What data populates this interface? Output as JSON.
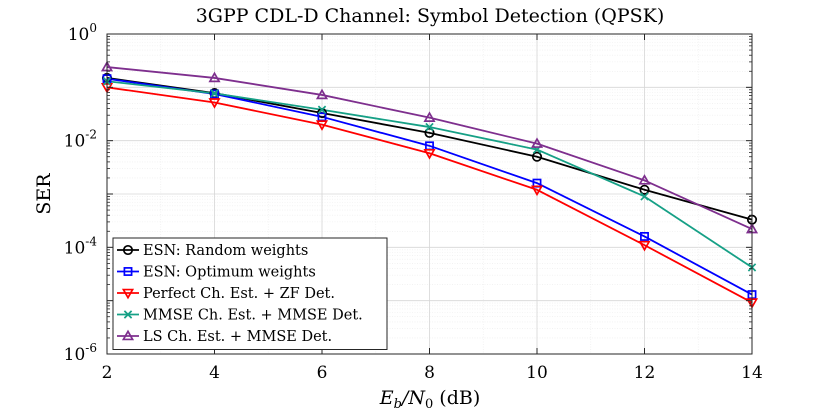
{
  "chart_data": {
    "type": "line",
    "title": "3GPP CDL-D Channel: Symbol Detection (QPSK)",
    "xlabel_main": "E",
    "xlabel_sub_b": "b",
    "xlabel_slash": "/N",
    "xlabel_sub_0": "0",
    "xlabel_unit": " (dB)",
    "ylabel": "SER",
    "x": [
      2,
      4,
      6,
      8,
      10,
      12,
      14
    ],
    "xlim": [
      2,
      14
    ],
    "ylim": [
      1e-06,
      1
    ],
    "yscale": "log",
    "grid": true,
    "legend_position": "bottom-left",
    "x_ticks": [
      "2",
      "4",
      "6",
      "8",
      "10",
      "12",
      "14"
    ],
    "y_ticks": [
      {
        "base": "10",
        "exp": "0",
        "value": 1
      },
      {
        "base": "10",
        "exp": "-2",
        "value": 0.01
      },
      {
        "base": "10",
        "exp": "-4",
        "value": 0.0001
      },
      {
        "base": "10",
        "exp": "-6",
        "value": 1e-06
      }
    ],
    "series": [
      {
        "name": "ESN: Random weights",
        "color": "#000000",
        "marker": "circle",
        "values": [
          0.15,
          0.078,
          0.033,
          0.014,
          0.005,
          0.0012,
          0.00033
        ]
      },
      {
        "name": "ESN: Optimum weights",
        "color": "#0000ff",
        "marker": "square",
        "values": [
          0.145,
          0.075,
          0.028,
          0.008,
          0.0016,
          0.00016,
          1.3e-05
        ]
      },
      {
        "name": "Perfect Ch. Est. + ZF Det.",
        "color": "#ff0000",
        "marker": "triangle-down",
        "values": [
          0.1,
          0.052,
          0.02,
          0.0058,
          0.0012,
          0.00011,
          9.2e-06
        ]
      },
      {
        "name": "MMSE Ch. Est. + MMSE Det.",
        "color": "#16a086",
        "marker": "x",
        "values": [
          0.13,
          0.077,
          0.038,
          0.018,
          0.0068,
          0.0009,
          4.2e-05
        ]
      },
      {
        "name": "LS Ch. Est. + MMSE Det.",
        "color": "#7e2f8e",
        "marker": "triangle-up",
        "values": [
          0.24,
          0.15,
          0.072,
          0.027,
          0.0088,
          0.0018,
          0.00022
        ]
      }
    ]
  }
}
